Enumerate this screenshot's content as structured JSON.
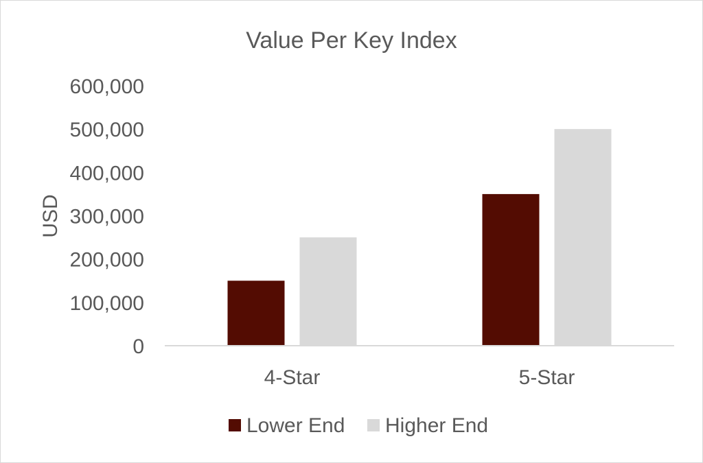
{
  "chart_data": {
    "type": "bar",
    "title": "Value Per Key Index",
    "xlabel": "",
    "ylabel": "USD",
    "categories": [
      "4-Star",
      "5-Star"
    ],
    "series": [
      {
        "name": "Lower End",
        "values": [
          150000,
          350000
        ],
        "color": "#530c02"
      },
      {
        "name": "Higher End",
        "values": [
          250000,
          500000
        ],
        "color": "#d9d9d9"
      }
    ],
    "ylim": [
      0,
      600000
    ],
    "yticks": [
      "0",
      "100,000",
      "200,000",
      "300,000",
      "400,000",
      "500,000",
      "600,000"
    ],
    "ytick_values": [
      0,
      100000,
      200000,
      300000,
      400000,
      500000,
      600000
    ],
    "grid": false,
    "legend_position": "bottom"
  }
}
